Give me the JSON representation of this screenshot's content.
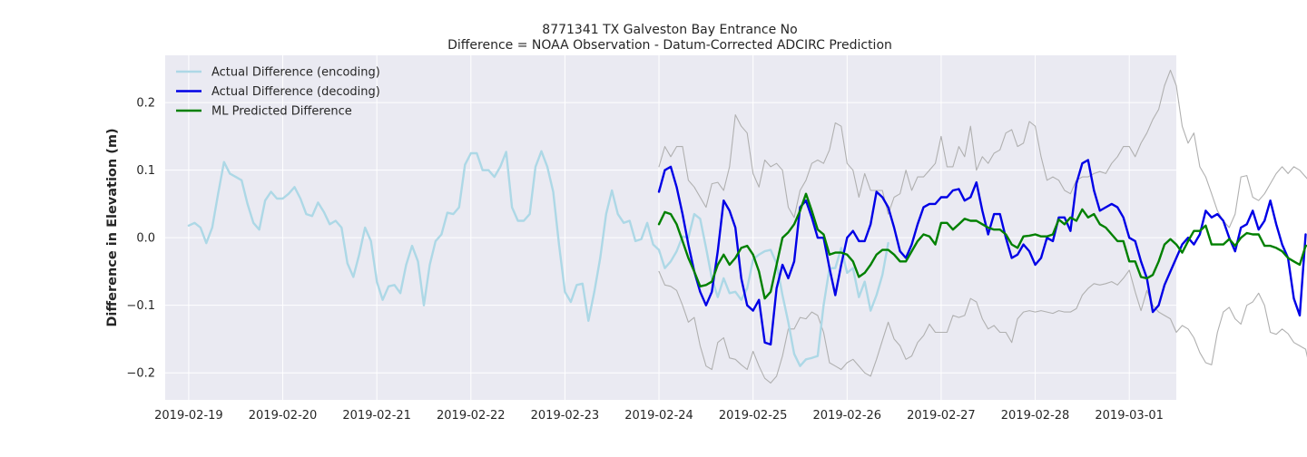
{
  "chart_data": {
    "type": "line",
    "title": "8771341 TX Galveston Bay Entrance No",
    "subtitle": "Difference = NOAA Observation - Datum-Corrected ADCIRC Prediction",
    "xlabel": "",
    "ylabel": "Difference in Elevation (m)",
    "xlim": [
      "2019-02-18 18:00",
      "2019-03-01 12:00"
    ],
    "ylim": [
      -0.24,
      0.27
    ],
    "x_ticks": [
      "2019-02-19",
      "2019-02-20",
      "2019-02-21",
      "2019-02-22",
      "2019-02-23",
      "2019-02-24",
      "2019-02-25",
      "2019-02-26",
      "2019-02-27",
      "2019-02-28",
      "2019-03-01"
    ],
    "y_ticks": [
      -0.2,
      -0.1,
      0.0,
      0.1,
      0.2
    ],
    "y_tick_labels": [
      "−0.2",
      "−0.1",
      "0.0",
      "0.1",
      "0.2"
    ],
    "grid": true,
    "legend_position": "top-left",
    "background": "#eaeaf2",
    "series": [
      {
        "name": "Actual Difference (encoding)",
        "color": "#add8e6",
        "x_start": "2019-02-19 00:00",
        "step_hours": 1.5,
        "values": [
          0.018,
          0.022,
          0.015,
          -0.008,
          0.015,
          0.065,
          0.112,
          0.095,
          0.09,
          0.085,
          0.05,
          0.022,
          0.012,
          0.055,
          0.068,
          0.058,
          0.058,
          0.065,
          0.075,
          0.058,
          0.035,
          0.032,
          0.052,
          0.038,
          0.02,
          0.025,
          0.015,
          -0.038,
          -0.058,
          -0.025,
          0.015,
          -0.005,
          -0.065,
          -0.092,
          -0.072,
          -0.07,
          -0.082,
          -0.04,
          -0.012,
          -0.035,
          -0.1,
          -0.04,
          -0.005,
          0.005,
          0.037,
          0.035,
          0.045,
          0.108,
          0.125,
          0.125,
          0.1,
          0.1,
          0.09,
          0.105,
          0.127,
          0.045,
          0.025,
          0.025,
          0.035,
          0.105,
          0.128,
          0.105,
          0.068,
          -0.01,
          -0.08,
          -0.095,
          -0.07,
          -0.068,
          -0.123,
          -0.08,
          -0.03,
          0.035,
          0.07,
          0.035,
          0.022,
          0.025,
          -0.005,
          -0.002,
          0.022,
          -0.01,
          -0.018,
          -0.045,
          -0.035,
          -0.02,
          0.002,
          0.0,
          0.035,
          0.028,
          -0.015,
          -0.06,
          -0.088,
          -0.06,
          -0.082,
          -0.08,
          -0.092,
          -0.075,
          -0.032,
          -0.025,
          -0.02,
          -0.018,
          -0.038,
          -0.085,
          -0.125,
          -0.172,
          -0.19,
          -0.18,
          -0.178,
          -0.175,
          -0.1,
          -0.045,
          -0.045,
          -0.015,
          -0.052,
          -0.045,
          -0.088,
          -0.065,
          -0.108,
          -0.085,
          -0.055,
          -0.008
        ]
      },
      {
        "name": "Actual Difference (decoding)",
        "color": "#0000e6",
        "x_start": "2019-02-24 00:00",
        "step_hours": 1.5,
        "values": [
          0.068,
          0.1,
          0.105,
          0.075,
          0.035,
          -0.01,
          -0.05,
          -0.08,
          -0.1,
          -0.08,
          -0.02,
          0.055,
          0.04,
          0.015,
          -0.06,
          -0.1,
          -0.108,
          -0.092,
          -0.155,
          -0.158,
          -0.075,
          -0.04,
          -0.06,
          -0.035,
          0.045,
          0.055,
          0.03,
          0.0,
          0.0,
          -0.045,
          -0.085,
          -0.04,
          0.0,
          0.01,
          -0.005,
          -0.005,
          0.02,
          0.068,
          0.06,
          0.045,
          0.015,
          -0.02,
          -0.03,
          -0.01,
          0.02,
          0.045,
          0.05,
          0.05,
          0.06,
          0.06,
          0.07,
          0.072,
          0.055,
          0.06,
          0.082,
          0.04,
          0.005,
          0.035,
          0.035,
          0.0,
          -0.03,
          -0.025,
          -0.01,
          -0.02,
          -0.04,
          -0.03,
          0.0,
          -0.005,
          0.03,
          0.03,
          0.01,
          0.08,
          0.11,
          0.115,
          0.07,
          0.04,
          0.045,
          0.05,
          0.045,
          0.03,
          0.0,
          -0.005,
          -0.035,
          -0.06,
          -0.11,
          -0.1,
          -0.07,
          -0.05,
          -0.03,
          -0.01,
          0.0,
          -0.01,
          0.005,
          0.04,
          0.03,
          0.035,
          0.025,
          0.0,
          -0.02,
          0.015,
          0.02,
          0.04,
          0.012,
          0.025,
          0.055,
          0.02,
          -0.01,
          -0.03,
          -0.09,
          -0.115,
          0.005
        ]
      },
      {
        "name": "ML Predicted Difference",
        "color": "#008000",
        "x_start": "2019-02-24 00:00",
        "step_hours": 1.5,
        "values": [
          0.02,
          0.038,
          0.035,
          0.02,
          -0.005,
          -0.03,
          -0.05,
          -0.072,
          -0.07,
          -0.065,
          -0.04,
          -0.025,
          -0.04,
          -0.03,
          -0.015,
          -0.012,
          -0.025,
          -0.05,
          -0.09,
          -0.08,
          -0.04,
          0.0,
          0.008,
          0.02,
          0.04,
          0.065,
          0.04,
          0.012,
          0.005,
          -0.025,
          -0.022,
          -0.022,
          -0.025,
          -0.035,
          -0.058,
          -0.052,
          -0.04,
          -0.025,
          -0.018,
          -0.018,
          -0.025,
          -0.035,
          -0.035,
          -0.02,
          -0.005,
          0.005,
          0.002,
          -0.01,
          0.022,
          0.022,
          0.012,
          0.02,
          0.028,
          0.025,
          0.025,
          0.02,
          0.015,
          0.012,
          0.012,
          0.005,
          -0.01,
          -0.015,
          0.002,
          0.003,
          0.005,
          0.002,
          0.002,
          0.005,
          0.027,
          0.02,
          0.03,
          0.025,
          0.042,
          0.03,
          0.035,
          0.02,
          0.015,
          0.005,
          -0.005,
          -0.005,
          -0.035,
          -0.035,
          -0.058,
          -0.06,
          -0.055,
          -0.035,
          -0.01,
          -0.002,
          -0.01,
          -0.022,
          -0.005,
          0.01,
          0.01,
          0.018,
          -0.01,
          -0.01,
          -0.01,
          -0.002,
          -0.012,
          0.0,
          0.007,
          0.005,
          0.005,
          -0.012,
          -0.012,
          -0.015,
          -0.02,
          -0.03,
          -0.035,
          -0.04,
          -0.012,
          -0.012
        ]
      },
      {
        "name": "",
        "color": "#b0b0b0",
        "x_start": "2019-02-24 00:00",
        "step_hours": 1.5,
        "values": [
          -0.05,
          -0.07,
          -0.072,
          -0.078,
          -0.1,
          -0.125,
          -0.118,
          -0.16,
          -0.19,
          -0.195,
          -0.155,
          -0.148,
          -0.178,
          -0.18,
          -0.188,
          -0.195,
          -0.168,
          -0.19,
          -0.208,
          -0.215,
          -0.205,
          -0.175,
          -0.135,
          -0.135,
          -0.118,
          -0.12,
          -0.11,
          -0.115,
          -0.14,
          -0.185,
          -0.19,
          -0.195,
          -0.185,
          -0.18,
          -0.19,
          -0.2,
          -0.205,
          -0.18,
          -0.152,
          -0.125,
          -0.15,
          -0.16,
          -0.18,
          -0.175,
          -0.155,
          -0.145,
          -0.128,
          -0.14,
          -0.14,
          -0.14,
          -0.115,
          -0.118,
          -0.115,
          -0.09,
          -0.095,
          -0.12,
          -0.135,
          -0.13,
          -0.14,
          -0.14,
          -0.155,
          -0.12,
          -0.11,
          -0.108,
          -0.11,
          -0.108,
          -0.11,
          -0.112,
          -0.108,
          -0.11,
          -0.11,
          -0.105,
          -0.085,
          -0.075,
          -0.068,
          -0.07,
          -0.068,
          -0.065,
          -0.07,
          -0.06,
          -0.048,
          -0.08,
          -0.108,
          -0.078,
          -0.1,
          -0.11,
          -0.115,
          -0.12,
          -0.14,
          -0.13,
          -0.135,
          -0.148,
          -0.17,
          -0.185,
          -0.188,
          -0.14,
          -0.11,
          -0.103,
          -0.12,
          -0.128,
          -0.1,
          -0.095,
          -0.082,
          -0.1,
          -0.14,
          -0.143,
          -0.135,
          -0.142,
          -0.155,
          -0.16,
          -0.165,
          -0.205,
          -0.175
        ]
      },
      {
        "name": "",
        "color": "#b0b0b0",
        "x_start": "2019-02-24 00:00",
        "step_hours": 1.5,
        "values": [
          0.105,
          0.135,
          0.12,
          0.135,
          0.135,
          0.085,
          0.075,
          0.06,
          0.045,
          0.08,
          0.082,
          0.07,
          0.105,
          0.182,
          0.165,
          0.155,
          0.095,
          0.075,
          0.115,
          0.105,
          0.11,
          0.1,
          0.045,
          0.03,
          0.07,
          0.085,
          0.11,
          0.115,
          0.11,
          0.13,
          0.17,
          0.165,
          0.11,
          0.1,
          0.06,
          0.095,
          0.07,
          0.07,
          0.07,
          0.035,
          0.06,
          0.065,
          0.1,
          0.07,
          0.09,
          0.09,
          0.1,
          0.11,
          0.15,
          0.105,
          0.105,
          0.135,
          0.12,
          0.165,
          0.1,
          0.12,
          0.11,
          0.125,
          0.13,
          0.155,
          0.16,
          0.135,
          0.14,
          0.172,
          0.165,
          0.12,
          0.085,
          0.09,
          0.085,
          0.07,
          0.065,
          0.085,
          0.09,
          0.09,
          0.095,
          0.098,
          0.095,
          0.11,
          0.12,
          0.135,
          0.135,
          0.12,
          0.14,
          0.155,
          0.175,
          0.19,
          0.225,
          0.248,
          0.225,
          0.165,
          0.14,
          0.155,
          0.105,
          0.09,
          0.065,
          0.04,
          0.025,
          0.015,
          0.035,
          0.09,
          0.092,
          0.06,
          0.055,
          0.065,
          0.08,
          0.095,
          0.105,
          0.095,
          0.105,
          0.1,
          0.09,
          0.08,
          0.085,
          0.105,
          0.08,
          0.08,
          0.09,
          0.13,
          0.125,
          0.14,
          0.205,
          0.14,
          0.095,
          0.085,
          0.09,
          0.075,
          0.075
        ]
      }
    ]
  }
}
